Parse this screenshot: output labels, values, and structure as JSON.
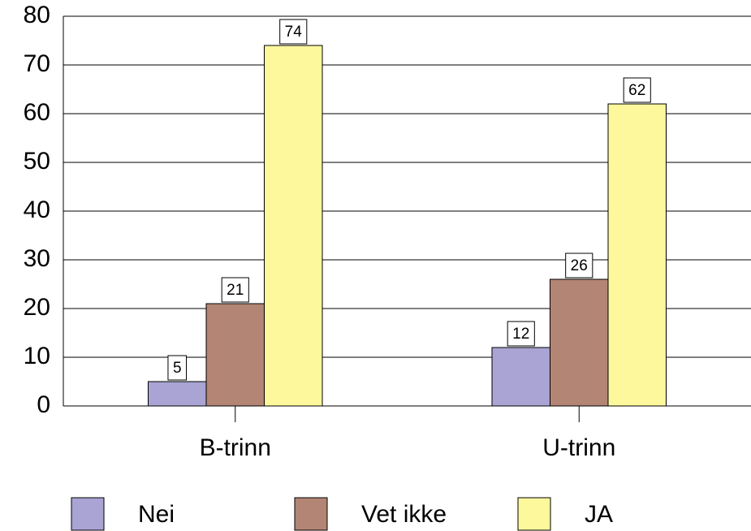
{
  "chart_data": {
    "type": "bar",
    "categories": [
      "B-trinn",
      "U-trinn"
    ],
    "series": [
      {
        "name": "Nei",
        "color": "#a9a4d4",
        "values": [
          5,
          12
        ]
      },
      {
        "name": "Vet ikke",
        "color": "#b38574",
        "values": [
          21,
          26
        ]
      },
      {
        "name": "JA",
        "color": "#fdf89c",
        "values": [
          74,
          62
        ]
      }
    ],
    "ylim": [
      0,
      80
    ],
    "yticks": [
      0,
      10,
      20,
      30,
      40,
      50,
      60,
      70,
      80
    ],
    "grid": true,
    "legend": "bottom"
  }
}
